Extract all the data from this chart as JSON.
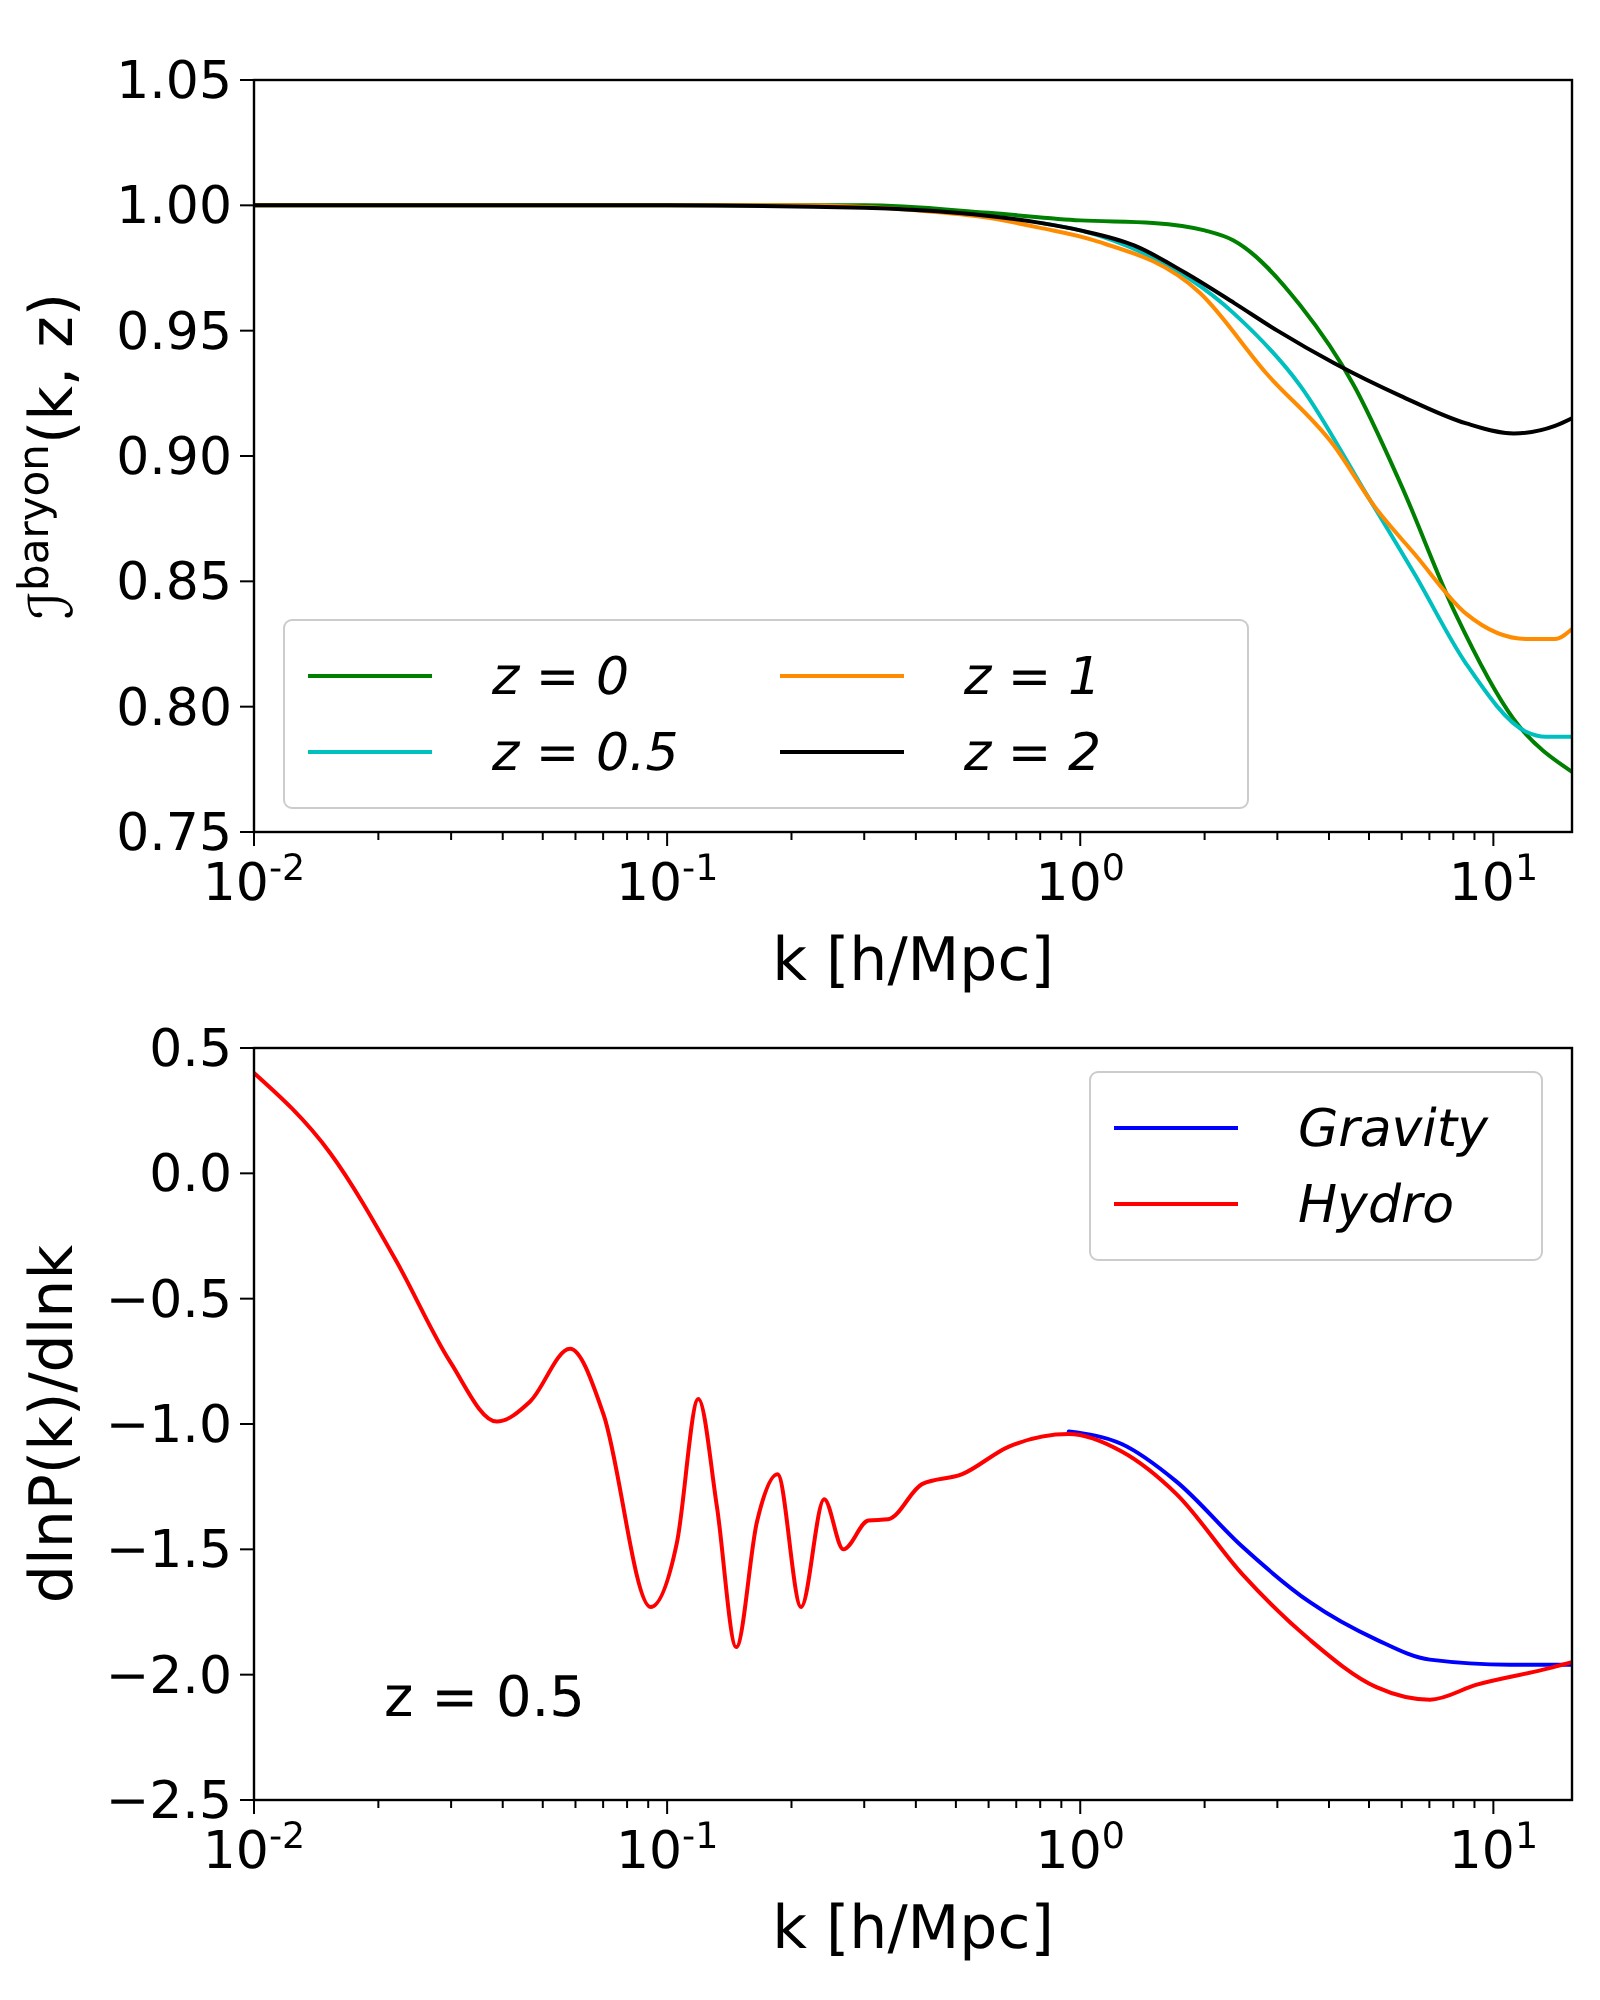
{
  "chart_data": [
    {
      "type": "line",
      "ylabel": "ℐ$^{baryon}$(k, z)",
      "xlabel": "k [h/Mpc]",
      "log": "x",
      "legend": "bottom left",
      "grid": false,
      "marker": "none",
      "line_style": "solid",
      "xlim": [
        0.01,
        15.5
      ],
      "ylim": [
        0.75,
        1.05
      ],
      "xticks": [
        {
          "value": 0.01,
          "label": "10$^{-2}$"
        },
        {
          "value": 0.02,
          "label": null
        },
        {
          "value": 0.03,
          "label": null
        },
        {
          "value": 0.04,
          "label": null
        },
        {
          "value": 0.05,
          "label": null
        },
        {
          "value": 0.06,
          "label": null
        },
        {
          "value": 0.07,
          "label": null
        },
        {
          "value": 0.08,
          "label": null
        },
        {
          "value": 0.09,
          "label": null
        },
        {
          "value": 0.1,
          "label": "10$^{-1}$"
        },
        {
          "value": 0.2,
          "label": null
        },
        {
          "value": 0.3,
          "label": null
        },
        {
          "value": 0.4,
          "label": null
        },
        {
          "value": 0.5,
          "label": null
        },
        {
          "value": 0.6,
          "label": null
        },
        {
          "value": 0.7,
          "label": null
        },
        {
          "value": 0.8,
          "label": null
        },
        {
          "value": 0.9,
          "label": null
        },
        {
          "value": 1,
          "label": "10$^{0}$"
        },
        {
          "value": 2,
          "label": null
        },
        {
          "value": 3,
          "label": null
        },
        {
          "value": 4,
          "label": null
        },
        {
          "value": 5,
          "label": null
        },
        {
          "value": 6,
          "label": null
        },
        {
          "value": 7,
          "label": null
        },
        {
          "value": 8,
          "label": null
        },
        {
          "value": 9,
          "label": null
        },
        {
          "value": 10,
          "label": "10$^{1}$"
        }
      ],
      "yticks": [
        {
          "value": 0.75,
          "label": "0.75"
        },
        {
          "value": 0.8,
          "label": "0.80"
        },
        {
          "value": 0.85,
          "label": "0.85"
        },
        {
          "value": 0.9,
          "label": "0.90"
        },
        {
          "value": 0.95,
          "label": "0.95"
        },
        {
          "value": 1.0,
          "label": "1.00"
        },
        {
          "value": 1.05,
          "label": "1.05"
        }
      ],
      "series": [
        {
          "name": "z = 0",
          "color": "#008000",
          "x": [
            0.01,
            0.1,
            0.3,
            0.6,
            1.0,
            1.5,
            2.0,
            2.35,
            3.41,
            4.6,
            5.96,
            8.1,
            11.2,
            15.5
          ],
          "values": [
            1.0,
            1.0,
            1.0,
            0.997,
            0.994,
            0.993,
            0.99,
            0.986,
            0.96,
            0.928,
            0.889,
            0.837,
            0.795,
            0.774
          ]
        },
        {
          "name": "z = 0.5",
          "color": "#00bfbf",
          "x": [
            0.8,
            1.0,
            1.2,
            2.35,
            3.41,
            4.92,
            6.44,
            8.6,
            12.0,
            13.4,
            15.5
          ],
          "values": [
            0.993,
            0.99,
            0.986,
            0.957,
            0.928,
            0.885,
            0.853,
            0.817,
            0.79,
            0.788,
            0.788
          ]
        },
        {
          "name": "z = 1",
          "color": "#ff8c00",
          "x": [
            0.01,
            0.2,
            0.4,
            0.6,
            0.8,
            1.08,
            1.95,
            2.82,
            4.12,
            5.15,
            6.44,
            8.6,
            12.0,
            14.1,
            15.5
          ],
          "values": [
            1.0,
            1.0,
            0.998,
            0.995,
            0.991,
            0.986,
            0.965,
            0.933,
            0.904,
            0.88,
            0.861,
            0.837,
            0.827,
            0.827,
            0.831
          ]
        },
        {
          "name": "z = 2",
          "color": "#000000",
          "x": [
            0.01,
            0.1,
            0.3,
            0.5,
            0.8,
            1.0,
            1.35,
            1.8,
            2.36,
            3.0,
            4.12,
            5.96,
            8.6,
            11.2,
            14.1,
            15.5
          ],
          "values": [
            1.0,
            1.0,
            0.999,
            0.997,
            0.993,
            0.99,
            0.984,
            0.973,
            0.961,
            0.95,
            0.937,
            0.924,
            0.913,
            0.909,
            0.912,
            0.915
          ]
        }
      ]
    },
    {
      "type": "line",
      "ylabel": "dlnP(k)/dlnk",
      "xlabel": "k [h/Mpc]",
      "log": "x",
      "legend": "top right",
      "grid": false,
      "marker": "none",
      "line_style": "solid",
      "annotations": [
        "z = 0.5"
      ],
      "xlim": [
        0.01,
        15.5
      ],
      "ylim": [
        -2.5,
        0.5
      ],
      "xticks": [
        {
          "value": 0.01,
          "label": "10$^{-2}$"
        },
        {
          "value": 0.02,
          "label": null
        },
        {
          "value": 0.03,
          "label": null
        },
        {
          "value": 0.04,
          "label": null
        },
        {
          "value": 0.05,
          "label": null
        },
        {
          "value": 0.06,
          "label": null
        },
        {
          "value": 0.07,
          "label": null
        },
        {
          "value": 0.08,
          "label": null
        },
        {
          "value": 0.09,
          "label": null
        },
        {
          "value": 0.1,
          "label": "10$^{-1}$"
        },
        {
          "value": 0.2,
          "label": null
        },
        {
          "value": 0.3,
          "label": null
        },
        {
          "value": 0.4,
          "label": null
        },
        {
          "value": 0.5,
          "label": null
        },
        {
          "value": 0.6,
          "label": null
        },
        {
          "value": 0.7,
          "label": null
        },
        {
          "value": 0.8,
          "label": null
        },
        {
          "value": 0.9,
          "label": null
        },
        {
          "value": 1,
          "label": "10$^{0}$"
        },
        {
          "value": 2,
          "label": null
        },
        {
          "value": 3,
          "label": null
        },
        {
          "value": 4,
          "label": null
        },
        {
          "value": 5,
          "label": null
        },
        {
          "value": 6,
          "label": null
        },
        {
          "value": 7,
          "label": null
        },
        {
          "value": 8,
          "label": null
        },
        {
          "value": 9,
          "label": null
        },
        {
          "value": 10,
          "label": "10$^{1}$"
        }
      ],
      "yticks": [
        {
          "value": -2.5,
          "label": "−2.5"
        },
        {
          "value": -2.0,
          "label": "−2.0"
        },
        {
          "value": -1.5,
          "label": "−1.5"
        },
        {
          "value": -1.0,
          "label": "−1.0"
        },
        {
          "value": -0.5,
          "label": "−0.5"
        },
        {
          "value": 0.0,
          "label": "0.0"
        },
        {
          "value": 0.5,
          "label": "0.5"
        }
      ],
      "series": [
        {
          "name": "Gravity",
          "color": "#0000ff",
          "x": [
            0.938,
            1.26,
            1.71,
            2.47,
            3.59,
            5.21,
            7.02,
            10.97,
            15.5
          ],
          "values": [
            -1.03,
            -1.08,
            -1.23,
            -1.49,
            -1.71,
            -1.86,
            -1.94,
            -1.96,
            -1.96
          ]
        },
        {
          "name": "Hydro",
          "color": "#ff0000",
          "x": [
            0.01,
            0.0153,
            0.0221,
            0.0298,
            0.0387,
            0.0466,
            0.0582,
            0.0701,
            0.0912,
            0.1057,
            0.119,
            0.132,
            0.147,
            0.165,
            0.185,
            0.211,
            0.24,
            0.267,
            0.307,
            0.343,
            0.414,
            0.518,
            0.672,
            0.938,
            1.26,
            1.71,
            2.47,
            3.59,
            5.21,
            7.02,
            9.12,
            13.2,
            15.5
          ],
          "values": [
            0.4,
            0.08,
            -0.35,
            -0.75,
            -0.99,
            -0.91,
            -0.7,
            -0.96,
            -1.73,
            -1.47,
            -0.9,
            -1.33,
            -1.89,
            -1.39,
            -1.2,
            -1.73,
            -1.3,
            -1.5,
            -1.385,
            -1.38,
            -1.24,
            -1.2,
            -1.09,
            -1.04,
            -1.11,
            -1.28,
            -1.6,
            -1.86,
            -2.05,
            -2.1,
            -2.04,
            -1.98,
            -1.95
          ]
        }
      ]
    }
  ]
}
